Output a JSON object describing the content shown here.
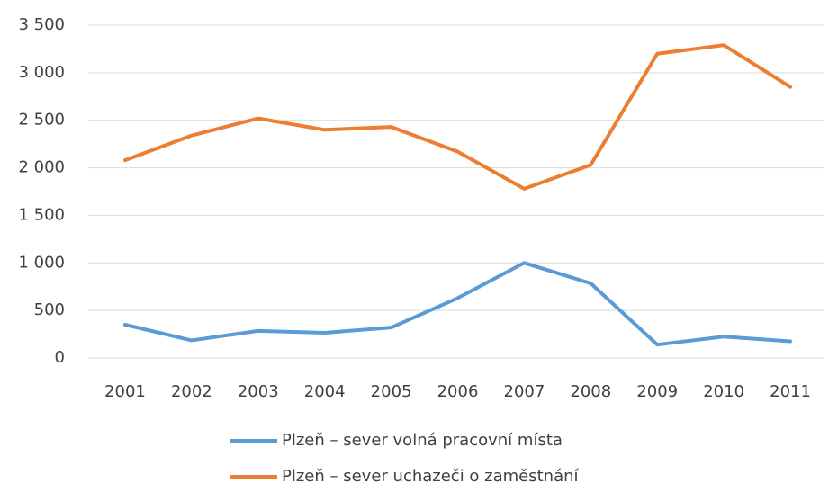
{
  "chart_data": {
    "type": "line",
    "categories": [
      "2001",
      "2002",
      "2003",
      "2004",
      "2005",
      "2006",
      "2007",
      "2008",
      "2009",
      "2010",
      "2011"
    ],
    "series": [
      {
        "name": "Plzeň – sever volná pracovní místa",
        "color": "#5b9bd5",
        "values": [
          350,
          185,
          285,
          265,
          320,
          630,
          1000,
          785,
          140,
          225,
          175
        ]
      },
      {
        "name": "Plzeň – sever uchazeči o zaměstnání",
        "color": "#ed7d31",
        "values": [
          2080,
          2340,
          2520,
          2400,
          2430,
          2170,
          1780,
          2030,
          3200,
          3290,
          2850
        ]
      }
    ],
    "ylim": [
      0,
      3500
    ],
    "yticks": [
      0,
      500,
      {
        "value": 1000,
        "label": "1 000"
      },
      {
        "value": 1500,
        "label": "1 500"
      },
      {
        "value": 2000,
        "label": "2 000"
      },
      {
        "value": 2500,
        "label": "2 500"
      },
      {
        "value": 3000,
        "label": "3 000"
      },
      {
        "value": 3500,
        "label": "3 500"
      }
    ],
    "grid": true,
    "legend": "bottom"
  }
}
